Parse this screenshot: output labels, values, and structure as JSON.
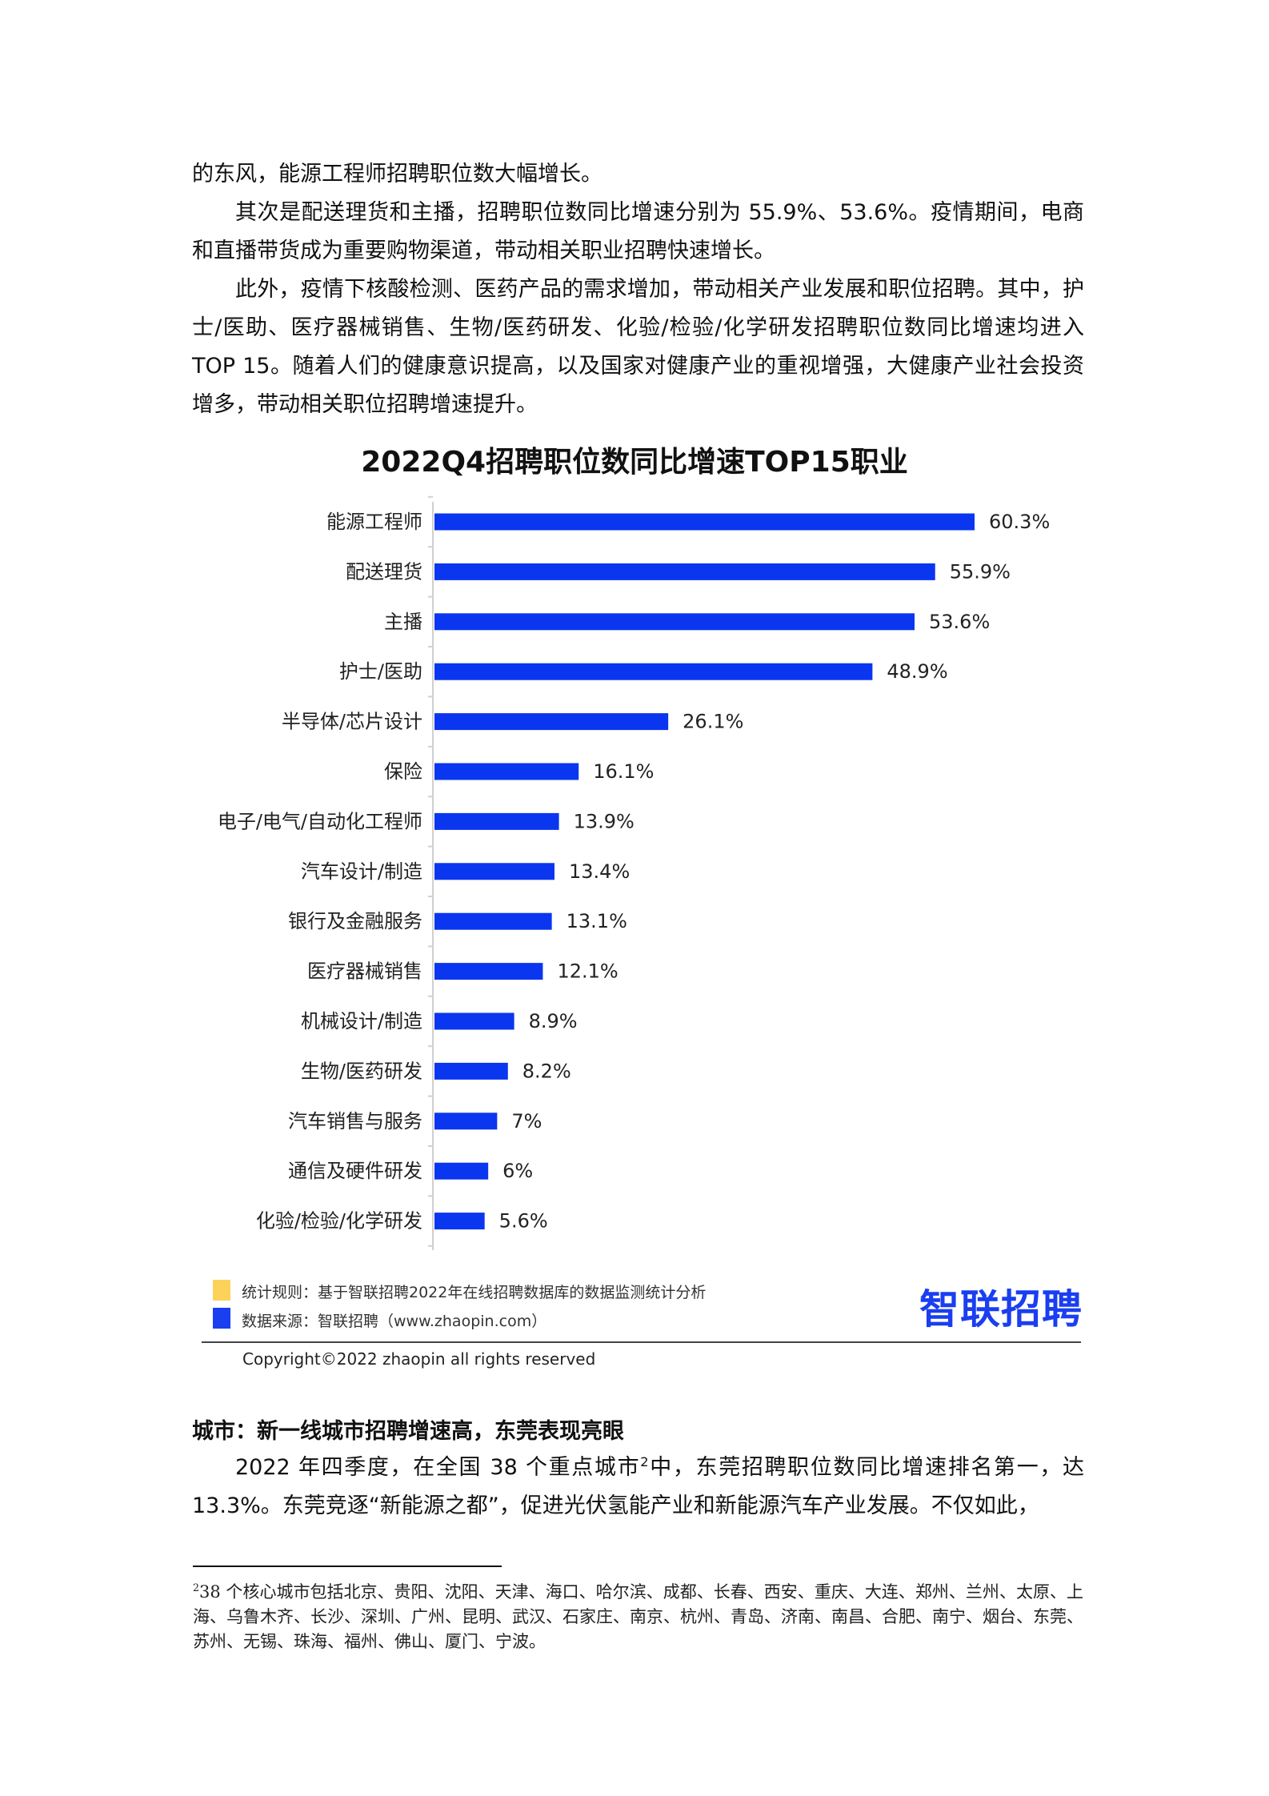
{
  "top_text": {
    "line1": "的东风，能源工程师招聘职位数大幅增长。",
    "para2": "其次是配送理货和主播，招聘职位数同比增速分别为 55.9%、53.6%。疫情期间，电商和直播带货成为重要购物渠道，带动相关职业招聘快速增长。",
    "para3": "此外，疫情下核酸检测、医药产品的需求增加，带动相关产业发展和职位招聘。其中，护士/医助、医疗器械销售、生物/医药研发、化验/检验/化学研发招聘职位数同比增速均进入 TOP 15。随着人们的健康意识提高，以及国家对健康产业的重视增强，大健康产业社会投资增多，带动相关职位招聘增速提升。"
  },
  "chart_data": {
    "type": "bar",
    "orientation": "horizontal",
    "title": "2022Q4招聘职位数同比增速TOP15职业",
    "categories": [
      "能源工程师",
      "配送理货",
      "主播",
      "护士/医助",
      "半导体/芯片设计",
      "保险",
      "电子/电气/自动化工程师",
      "汽车设计/制造",
      "银行及金融服务",
      "医疗器械销售",
      "机械设计/制造",
      "生物/医药研发",
      "汽车销售与服务",
      "通信及硬件研发",
      "化验/检验/化学研发"
    ],
    "values": [
      60.3,
      55.9,
      53.6,
      48.9,
      26.1,
      16.1,
      13.9,
      13.4,
      13.1,
      12.1,
      8.9,
      8.2,
      7,
      6,
      5.6
    ],
    "data_labels": [
      "60.3%",
      "55.9%",
      "53.6%",
      "48.9%",
      "26.1%",
      "16.1%",
      "13.9%",
      "13.4%",
      "13.1%",
      "12.1%",
      "8.9%",
      "8.2%",
      "7%",
      "6%",
      "5.6%"
    ],
    "xlim": [
      0,
      62
    ],
    "grid": false,
    "bar_color": "#0a36f0"
  },
  "legend": {
    "rule_label": "统计规则：基于智联招聘2022年在线招聘数据库的数据监测统计分析",
    "rule_color": "#fcd25a",
    "source_label": "数据来源：智联招聘（www.zhaopin.com）",
    "source_color": "#1a3ef0"
  },
  "logo": "智联招聘",
  "copyright": "Copyright©2022 zhaopin all rights reserved",
  "section": {
    "heading": "城市：新一线城市招聘增速高，东莞表现亮眼",
    "para_before_sup": "2022 年四季度，在全国 38 个重点城市",
    "sup": "2",
    "para_after_sup": "中，东莞招聘职位数同比增速排名第一，达 13.3%。东莞竞逐“新能源之都”，促进光伏氢能产业和新能源汽车产业发展。不仅如此，"
  },
  "footnote": {
    "mark": "2",
    "text": "38 个核心城市包括北京、贵阳、沈阳、天津、海口、哈尔滨、成都、长春、西安、重庆、大连、郑州、兰州、太原、上海、乌鲁木齐、长沙、深圳、广州、昆明、武汉、石家庄、南京、杭州、青岛、济南、南昌、合肥、南宁、烟台、东莞、苏州、无锡、珠海、福州、佛山、厦门、宁波。"
  }
}
